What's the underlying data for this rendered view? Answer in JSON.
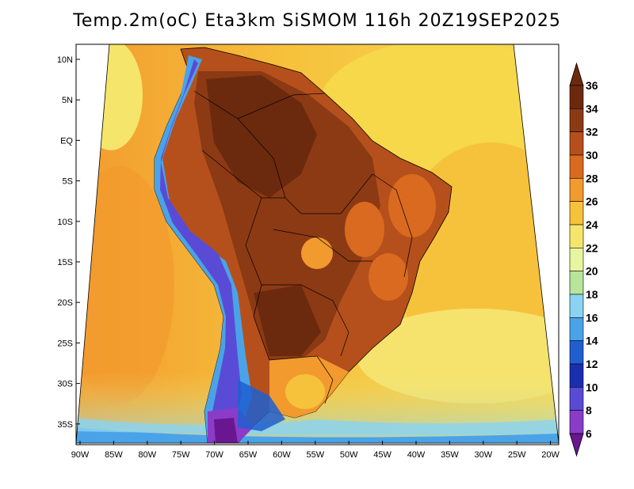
{
  "title": "Temp.2m(oC) Eta3km SiSMOM 116h 20Z19SEP2025",
  "map": {
    "latitude_labels": [
      "10N",
      "5N",
      "EQ",
      "5S",
      "10S",
      "15S",
      "20S",
      "25S",
      "30S",
      "35S"
    ],
    "longitude_labels": [
      "90W",
      "85W",
      "80W",
      "75W",
      "70W",
      "65W",
      "60W",
      "55W",
      "50W",
      "45W",
      "40W",
      "35W",
      "30W",
      "25W",
      "20W"
    ]
  },
  "colorbar": {
    "labels": [
      "36",
      "34",
      "32",
      "30",
      "28",
      "26",
      "24",
      "22",
      "20",
      "18",
      "16",
      "14",
      "12",
      "10",
      "8",
      "6"
    ],
    "colors": [
      "#6b2a0e",
      "#8c3a14",
      "#b5501c",
      "#d96a1f",
      "#f29a2e",
      "#f6c23c",
      "#f5e56a",
      "#e8f5a0",
      "#b7e59a",
      "#8ad3f2",
      "#4aa3e8",
      "#1f5fd0",
      "#1a2fb0",
      "#5a4bd6",
      "#8a3cc9",
      "#6a1690"
    ],
    "top_color": "#6b2a0e",
    "bottom_color": "#6a1690"
  }
}
